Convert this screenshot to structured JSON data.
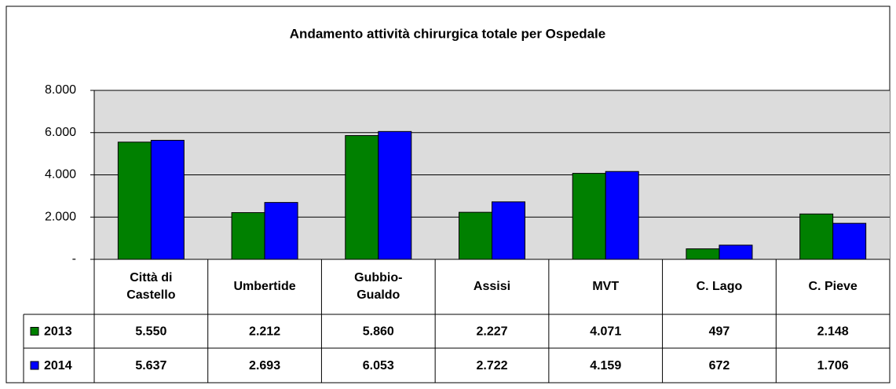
{
  "chart_data": {
    "type": "bar",
    "title": "Andamento attività chirurgica totale per Ospedale",
    "categories": [
      "Città di\nCastello",
      "Umbertide",
      "Gubbio-\nGualdo",
      "Assisi",
      "MVT",
      "C. Lago",
      "C. Pieve"
    ],
    "series": [
      {
        "name": "2013",
        "color": "#008000",
        "values": [
          5550,
          2212,
          5860,
          2227,
          4071,
          497,
          2148
        ],
        "value_labels": [
          "5.550",
          "2.212",
          "5.860",
          "2.227",
          "4.071",
          "497",
          "2.148"
        ]
      },
      {
        "name": "2014",
        "color": "#0000ff",
        "values": [
          5637,
          2693,
          6053,
          2722,
          4159,
          672,
          1706
        ],
        "value_labels": [
          "5.637",
          "2.693",
          "6.053",
          "2.722",
          "4.159",
          "672",
          "1.706"
        ]
      }
    ],
    "ylim": [
      0,
      8000
    ],
    "yticks": [
      {
        "value": 0,
        "label": "-"
      },
      {
        "value": 2000,
        "label": "2.000"
      },
      {
        "value": 4000,
        "label": "4.000"
      },
      {
        "value": 6000,
        "label": "6.000"
      },
      {
        "value": 8000,
        "label": "8.000"
      }
    ],
    "grid": true
  }
}
